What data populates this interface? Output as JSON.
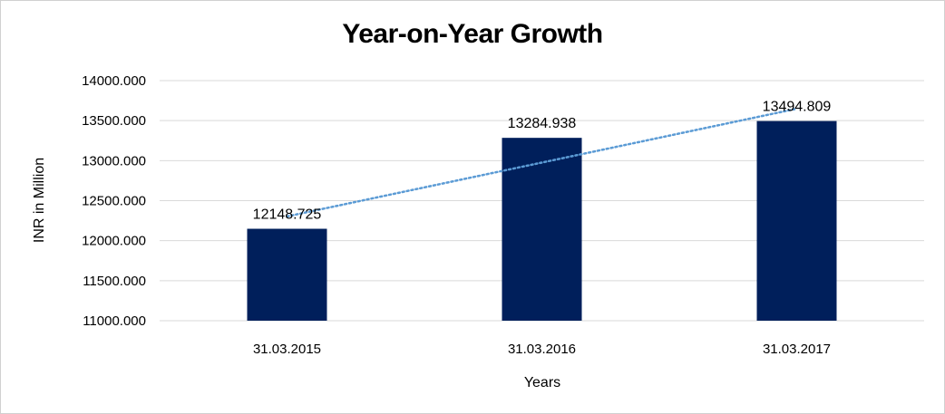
{
  "chart_data": {
    "type": "bar",
    "title": "Year-on-Year Growth",
    "xlabel": "Years",
    "ylabel": "INR in Million",
    "categories": [
      "31.03.2015",
      "31.03.2016",
      "31.03.2017"
    ],
    "values": [
      12148.725,
      13284.938,
      13494.809
    ],
    "data_labels": [
      "12148.725",
      "13284.938",
      "13494.809"
    ],
    "ylim": [
      11000,
      14000
    ],
    "yticks": [
      11000,
      11500,
      12000,
      12500,
      13000,
      13500,
      14000
    ],
    "ytick_labels": [
      "11000.000",
      "11500.000",
      "12000.000",
      "12500.000",
      "13000.000",
      "13500.000",
      "14000.000"
    ],
    "grid": true,
    "legend": "none",
    "trendline": {
      "type": "linear",
      "style": "dotted",
      "color": "#5b9bd5"
    },
    "bar_color": "#001f5b",
    "grid_color": "#d9d9d9"
  }
}
